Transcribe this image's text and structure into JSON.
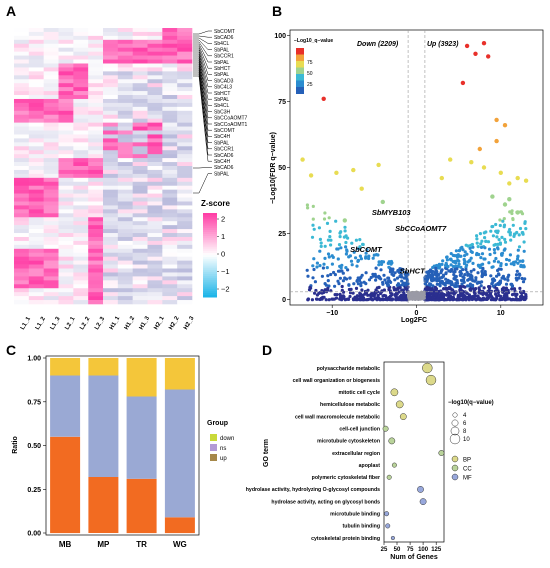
{
  "panels": {
    "a": "A",
    "b": "B",
    "c": "C",
    "d": "D"
  },
  "chart_data": [
    {
      "panel": "A",
      "type": "heatmap",
      "columns": [
        "L1_1",
        "L1_2",
        "L1_3",
        "L2_1",
        "L2_2",
        "L2_3",
        "H1_1",
        "H1_2",
        "H1_3",
        "H2_1",
        "H2_2",
        "H2_3"
      ],
      "gene_labels": [
        "SbCOMT",
        "SbCAD6",
        "Sb4CL",
        "SbPAL",
        "SbCCR1",
        "SbPAL",
        "SbHCT",
        "SbPAL",
        "SbCAD3",
        "SbC4L3",
        "SbHCT",
        "SbPAL",
        "Sb4CL",
        "SbC3H",
        "SbCCoAOMT7",
        "SbCCoAOMT1",
        "SbCOMT",
        "SbC4H",
        "SbPAL",
        "SbCCR1",
        "SbCAD6",
        "SbC4H",
        "SbCAD6",
        "SbPAL"
      ],
      "legend_title": "Z-score",
      "legend_ticks": [
        "2",
        "1",
        "0",
        "−1",
        "−2"
      ],
      "colors": {
        "high": "#ff3fa6",
        "mid": "#ffffff",
        "low": "#1fb5e8",
        "base": "#3b3e9c"
      }
    },
    {
      "panel": "B",
      "type": "scatter",
      "xlabel": "Log2FC",
      "ylabel": "−Log10(FDR q−value)",
      "xlim": [
        -15,
        15
      ],
      "ylim": [
        -2,
        102
      ],
      "xticks": [
        -10,
        0,
        10
      ],
      "yticks": [
        0,
        25,
        50,
        75,
        100
      ],
      "xticklabels": [
        "−10",
        "0",
        "10"
      ],
      "yticklabels": [
        "0",
        "25",
        "50",
        "75",
        "100"
      ],
      "down_label": "Down (2209)",
      "up_label": "Up (3923)",
      "colorbar_title": "−Log10_q−value",
      "colorbar_ticks": [
        "75",
        "50",
        "25"
      ],
      "threshold_y": 3,
      "vlines": [
        -1,
        1
      ],
      "annotations": [
        {
          "label": "SbMYB103",
          "x": -3.0,
          "y": 32
        },
        {
          "label": "SbCCoAOMT7",
          "x": 0.5,
          "y": 26
        },
        {
          "label": "SbCOMT",
          "x": -6.0,
          "y": 18
        },
        {
          "label": "SbHCT",
          "x": -0.5,
          "y": 10
        }
      ],
      "highlight_points": [
        {
          "x": -11.0,
          "y": 76
        },
        {
          "x": 6.0,
          "y": 96
        },
        {
          "x": 7.0,
          "y": 93
        },
        {
          "x": 8.0,
          "y": 97
        },
        {
          "x": 8.5,
          "y": 92
        },
        {
          "x": 5.5,
          "y": 82
        },
        {
          "x": 9.5,
          "y": 68
        },
        {
          "x": 10.5,
          "y": 66
        },
        {
          "x": 9.5,
          "y": 60
        },
        {
          "x": -13.5,
          "y": 53
        },
        {
          "x": -12.5,
          "y": 47
        },
        {
          "x": -9.5,
          "y": 48
        },
        {
          "x": -7.5,
          "y": 49
        },
        {
          "x": -4.5,
          "y": 51
        },
        {
          "x": 4.0,
          "y": 53
        },
        {
          "x": 6.5,
          "y": 52
        },
        {
          "x": 7.5,
          "y": 57
        },
        {
          "x": 8.0,
          "y": 50
        },
        {
          "x": 10.0,
          "y": 48
        },
        {
          "x": 11.0,
          "y": 44
        },
        {
          "x": 12.0,
          "y": 46
        },
        {
          "x": 13.0,
          "y": 45
        },
        {
          "x": -6.5,
          "y": 42
        },
        {
          "x": 3.0,
          "y": 46
        },
        {
          "x": 11.0,
          "y": 38
        },
        {
          "x": 10.5,
          "y": 36
        },
        {
          "x": 9.0,
          "y": 39
        },
        {
          "x": -4.0,
          "y": 37
        },
        {
          "x": -8.5,
          "y": 30
        },
        {
          "x": 12.0,
          "y": 33
        }
      ]
    },
    {
      "panel": "C",
      "type": "bar",
      "categories": [
        "MB",
        "MP",
        "TR",
        "WG"
      ],
      "series": [
        {
          "name": "up",
          "values": [
            0.55,
            0.32,
            0.31,
            0.09
          ]
        },
        {
          "name": "ns",
          "values": [
            0.35,
            0.58,
            0.47,
            0.73
          ]
        },
        {
          "name": "down",
          "values": [
            0.1,
            0.1,
            0.22,
            0.18
          ]
        }
      ],
      "ylabel": "Ratio",
      "yticks": [
        "0.00",
        "0.25",
        "0.50",
        "0.75",
        "1.00"
      ],
      "ylim": [
        0,
        1
      ],
      "legend_title": "Group",
      "legend_order": [
        "down",
        "ns",
        "up"
      ],
      "colors": {
        "up": "#f26b21",
        "ns": "#9aa9d4",
        "down": "#f4c63a",
        "up_legend": "#a6884a",
        "ns_legend": "#b39ad6",
        "down_legend": "#c9d93a"
      }
    },
    {
      "panel": "D",
      "type": "scatter",
      "ylabel": "GO term",
      "xlabel": "Num of Genes",
      "xticks": [
        "25",
        "50",
        "75",
        "100",
        "125"
      ],
      "xlim": [
        25,
        140
      ],
      "terms": [
        {
          "term": "polysaccharide metabolic",
          "genes": 108,
          "q": 10,
          "cat": "BP"
        },
        {
          "term": "cell wall organization or biogenesis",
          "genes": 115,
          "q": 10,
          "cat": "BP"
        },
        {
          "term": "mitotic cell cycle",
          "genes": 45,
          "q": 7,
          "cat": "BP"
        },
        {
          "term": "hemicellulose metabolic",
          "genes": 55,
          "q": 7,
          "cat": "BP"
        },
        {
          "term": "cell wall macromolecule metabolic",
          "genes": 62,
          "q": 6,
          "cat": "BP"
        },
        {
          "term": "cell-cell junction",
          "genes": 28,
          "q": 5,
          "cat": "CC"
        },
        {
          "term": "microtubule cytoskeleton",
          "genes": 40,
          "q": 6,
          "cat": "CC"
        },
        {
          "term": "extracellular region",
          "genes": 135,
          "q": 5,
          "cat": "CC"
        },
        {
          "term": "apoplast",
          "genes": 45,
          "q": 4,
          "cat": "CC"
        },
        {
          "term": "polymeric cytoskeletal fiber",
          "genes": 35,
          "q": 4,
          "cat": "CC"
        },
        {
          "term": "hydrolase activity, hydrolyzing O-glycosyl compounds",
          "genes": 95,
          "q": 6,
          "cat": "MF"
        },
        {
          "term": "hydrolase activity, acting on glycosyl bonds",
          "genes": 100,
          "q": 6,
          "cat": "MF"
        },
        {
          "term": "microtubule binding",
          "genes": 30,
          "q": 4,
          "cat": "MF"
        },
        {
          "term": "tubulin binding",
          "genes": 32,
          "q": 4,
          "cat": "MF"
        },
        {
          "term": "cytoskeletal protein binding",
          "genes": 42,
          "q": 3,
          "cat": "MF"
        }
      ],
      "size_legend_title": "−log10(q−value)",
      "size_legend": [
        "4",
        "6",
        "8",
        "10"
      ],
      "category_legend": [
        "BP",
        "CC",
        "MF"
      ],
      "colors": {
        "BP": "#dcd98a",
        "CC": "#b9d39a",
        "MF": "#98a8dc"
      }
    }
  ]
}
